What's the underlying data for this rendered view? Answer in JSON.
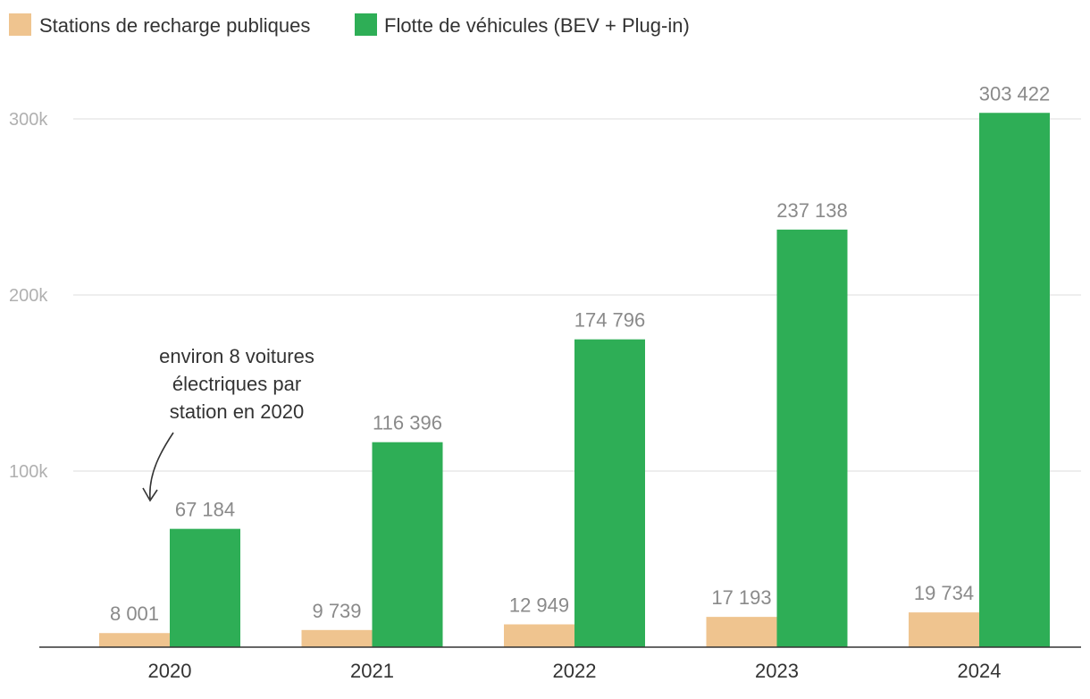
{
  "chart_data": {
    "type": "bar",
    "title": "",
    "xlabel": "",
    "ylabel": "",
    "categories": [
      "2020",
      "2021",
      "2022",
      "2023",
      "2024"
    ],
    "series": [
      {
        "name": "Stations de recharge publiques",
        "color": "#efc48f",
        "values": [
          8001,
          9739,
          12949,
          17193,
          19734
        ],
        "labels": [
          "8 001",
          "9 739",
          "12 949",
          "17 193",
          "19 734"
        ]
      },
      {
        "name": "Flotte de véhicules (BEV + Plug-in)",
        "color": "#2eae56",
        "values": [
          67184,
          116396,
          174796,
          237138,
          303422
        ],
        "labels": [
          "67 184",
          "116 396",
          "174 796",
          "237 138",
          "303 422"
        ]
      }
    ],
    "ylim": [
      0,
      310000
    ],
    "yticks": [
      100000,
      200000,
      300000
    ],
    "ytick_labels": [
      "100k",
      "200k",
      "300k"
    ],
    "grid": true,
    "legend_position": "top-left",
    "annotation": {
      "lines": [
        "environ 8 voitures",
        "électriques par",
        "station en 2020"
      ],
      "points_to": "2020"
    }
  }
}
